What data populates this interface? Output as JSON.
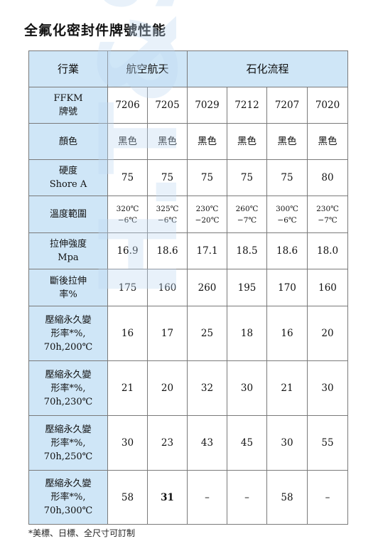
{
  "title": "全氟化密封件牌號性能",
  "watermark": "H.T&SOG",
  "header": {
    "col0": "行業",
    "group_a": "航空航天",
    "group_b": "石化流程"
  },
  "rows": [
    {
      "label": [
        "FFKM",
        "牌號"
      ],
      "values": [
        "7206",
        "7205",
        "7029",
        "7212",
        "7207",
        "7020"
      ]
    },
    {
      "label": [
        "顏色"
      ],
      "values": [
        "黑色",
        "黑色",
        "黑色",
        "黑色",
        "黑色",
        "黑色"
      ]
    },
    {
      "label": [
        "硬度",
        "Shore A"
      ],
      "values": [
        "75",
        "75",
        "75",
        "75",
        "75",
        "80"
      ]
    },
    {
      "label": [
        "溫度範圍"
      ],
      "values": [
        [
          "320℃",
          "−6℃"
        ],
        [
          "325℃",
          "−6℃"
        ],
        [
          "230℃",
          "−20℃"
        ],
        [
          "260℃",
          "−7℃"
        ],
        [
          "300℃",
          "−6℃"
        ],
        [
          "230℃",
          "−7℃"
        ]
      ]
    },
    {
      "label": [
        "拉伸強度",
        "Mpa"
      ],
      "values": [
        "16.9",
        "18.6",
        "17.1",
        "18.5",
        "18.6",
        "18.0"
      ]
    },
    {
      "label": [
        "斷後拉伸",
        "率%"
      ],
      "values": [
        "175",
        "160",
        "260",
        "195",
        "170",
        "160"
      ]
    },
    {
      "label": [
        "壓縮永久變",
        "形率*%,",
        "70h,200℃"
      ],
      "values": [
        "16",
        "17",
        "25",
        "18",
        "16",
        "20"
      ]
    },
    {
      "label": [
        "壓縮永久變",
        "形率*%,",
        "70h,230℃"
      ],
      "values": [
        "21",
        "20",
        "32",
        "30",
        "21",
        "30"
      ]
    },
    {
      "label": [
        "壓縮永久變",
        "形率*%,",
        "70h,250℃"
      ],
      "values": [
        "30",
        "23",
        "43",
        "45",
        "30",
        "55"
      ]
    },
    {
      "label": [
        "壓縮永久變",
        "形率*%,",
        "70h,300℃"
      ],
      "values": [
        "58",
        "31",
        "–",
        "–",
        "58",
        "–"
      ]
    }
  ],
  "footnote": "*美標、日標、全尺寸可訂制"
}
